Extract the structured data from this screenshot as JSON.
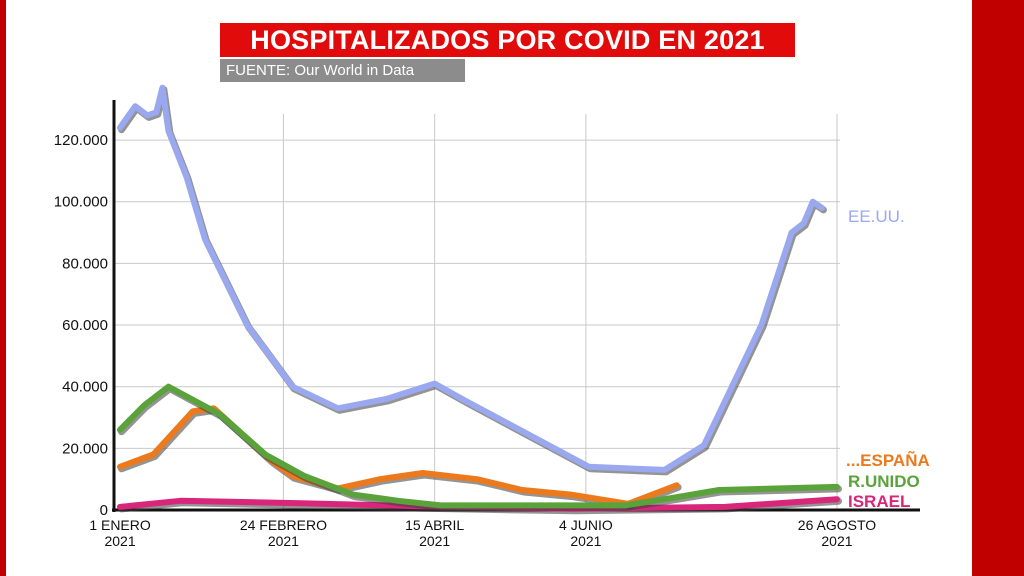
{
  "title": "HOSPITALIZADOS POR COVID EN 2021",
  "source": "FUENTE: Our World in Data",
  "chart_data": {
    "type": "line",
    "title": "HOSPITALIZADOS POR COVID EN 2021",
    "y_ticks": [
      "0",
      "20.000",
      "40.000",
      "60.000",
      "80.000",
      "100.000",
      "120.000"
    ],
    "y_tick_values": [
      0,
      20000,
      40000,
      60000,
      80000,
      100000,
      120000
    ],
    "ylim": [
      0,
      133000
    ],
    "xlim": [
      -2,
      238
    ],
    "x_ticks": [
      {
        "day": 0,
        "line1": "1 ENERO",
        "line2": "2021"
      },
      {
        "day": 54,
        "line1": "24 FEBRERO",
        "line2": "2021"
      },
      {
        "day": 104,
        "line1": "15 ABRIL",
        "line2": "2021"
      },
      {
        "day": 154,
        "line1": "4 JUNIO",
        "line2": "2021"
      },
      {
        "day": 237,
        "line1": "26 AGOSTO",
        "line2": "2021"
      }
    ],
    "grid": true,
    "legend_placement": "right, at line ends",
    "series": [
      {
        "name": "EE.UU.",
        "color": "#9aa8ef",
        "points": [
          [
            0,
            124000
          ],
          [
            5,
            131000
          ],
          [
            9,
            128000
          ],
          [
            12,
            129000
          ],
          [
            14,
            137000
          ],
          [
            16,
            123000
          ],
          [
            22,
            108000
          ],
          [
            28,
            88000
          ],
          [
            42,
            60000
          ],
          [
            57,
            40000
          ],
          [
            72,
            33000
          ],
          [
            88,
            36000
          ],
          [
            104,
            41000
          ],
          [
            115,
            35000
          ],
          [
            155,
            14000
          ],
          [
            180,
            13000
          ],
          [
            193,
            21000
          ],
          [
            212,
            60000
          ],
          [
            222,
            90000
          ],
          [
            226,
            93000
          ],
          [
            229,
            100000
          ],
          [
            232,
            98000
          ]
        ]
      },
      {
        "name": "...ESPAÑA",
        "color": "#ec7a1c",
        "points": [
          [
            0,
            14000
          ],
          [
            11,
            18000
          ],
          [
            24,
            32000
          ],
          [
            31,
            33000
          ],
          [
            50,
            16000
          ],
          [
            57,
            11000
          ],
          [
            72,
            7000
          ],
          [
            86,
            10000
          ],
          [
            100,
            12000
          ],
          [
            118,
            10000
          ],
          [
            133,
            6500
          ],
          [
            149,
            5000
          ],
          [
            168,
            2000
          ],
          [
            184,
            8000
          ]
        ]
      },
      {
        "name": "R.UNIDO",
        "color": "#5aa33a",
        "points": [
          [
            0,
            26000
          ],
          [
            8,
            34000
          ],
          [
            16,
            40000
          ],
          [
            33,
            31000
          ],
          [
            48,
            18000
          ],
          [
            61,
            11000
          ],
          [
            77,
            5000
          ],
          [
            92,
            3000
          ],
          [
            106,
            1500
          ],
          [
            124,
            1500
          ],
          [
            154,
            1500
          ],
          [
            167,
            1500
          ],
          [
            183,
            4000
          ],
          [
            198,
            6500
          ],
          [
            237,
            7500
          ]
        ]
      },
      {
        "name": "ISRAEL",
        "color": "#d8267a",
        "points": [
          [
            0,
            1000
          ],
          [
            20,
            3000
          ],
          [
            60,
            2200
          ],
          [
            100,
            1200
          ],
          [
            150,
            400
          ],
          [
            200,
            1000
          ],
          [
            237,
            3500
          ]
        ]
      }
    ]
  }
}
